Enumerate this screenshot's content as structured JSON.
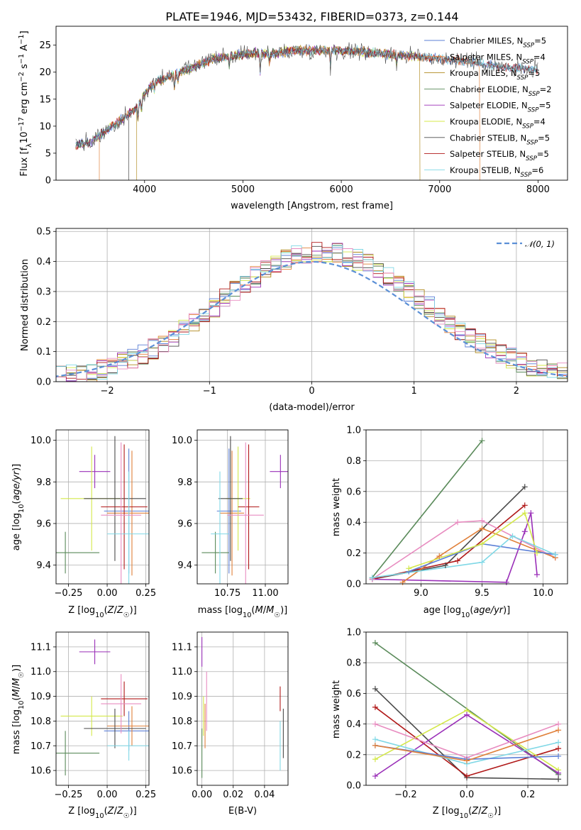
{
  "page": {
    "title": "PLATE=1946, MJD=53432, FIBERID=0373, z=0.144"
  },
  "colors": {
    "Chabrier MILES": "#5b7fd6",
    "Salpeter MILES": "#e0803a",
    "Kroupa MILES": "#b08a1e",
    "Chabrier ELODIE": "#5a8a5a",
    "Salpeter ELODIE": "#9a2fb8",
    "Kroupa ELODIE": "#d4e84a",
    "Chabrier STELIB": "#4a4a4a",
    "Salpeter STELIB": "#b01818",
    "Kroupa STELIB": "#80d8e6",
    "pink": "#e88cc0",
    "normal": "#5b8fd6",
    "grid": "#b0b0b0"
  },
  "chart_data": [
    {
      "id": "spectrum",
      "type": "line",
      "title": "PLATE=1946, MJD=53432, FIBERID=0373, z=0.144",
      "xlabel": "wavelength [Angstrom, rest frame]",
      "ylabel": "Flux [fλ10⁻¹⁷ erg cm⁻² s⁻¹ A⁻¹]",
      "xlim": [
        3100,
        8300
      ],
      "ylim": [
        0,
        28.5
      ],
      "xticks": [
        4000,
        5000,
        6000,
        7000,
        8000
      ],
      "yticks": [
        0,
        5,
        10,
        15,
        20,
        25
      ],
      "legend_position": "top-right",
      "continuum": {
        "x": [
          3300,
          3450,
          3600,
          3750,
          3900,
          4000,
          4100,
          4300,
          4500,
          4700,
          4900,
          5100,
          5300,
          5500,
          5800,
          6100,
          6400,
          6700,
          7000,
          7300,
          7600,
          7900,
          8000
        ],
        "y": [
          6.5,
          7.0,
          9.0,
          11.0,
          13.0,
          16.0,
          18.0,
          19.5,
          21.0,
          22.5,
          23.0,
          23.5,
          23.5,
          24.0,
          24.0,
          24.0,
          23.5,
          23.0,
          22.5,
          22.0,
          21.0,
          20.5,
          20.5
        ]
      },
      "series": [
        {
          "name": "Chabrier MILES",
          "nssp": "5"
        },
        {
          "name": "Salpeter MILES",
          "nssp": "4"
        },
        {
          "name": "Kroupa MILES",
          "nssp": "5"
        },
        {
          "name": "Chabrier ELODIE",
          "nssp": "2"
        },
        {
          "name": "Salpeter ELODIE",
          "nssp": "5"
        },
        {
          "name": "Kroupa ELODIE",
          "nssp": "4"
        },
        {
          "name": "Chabrier STELIB",
          "nssp": "5"
        },
        {
          "name": "Salpeter STELIB",
          "nssp": "5"
        },
        {
          "name": "Kroupa STELIB",
          "nssp": "6"
        }
      ],
      "model_ranges": [
        {
          "name": "Salpeter MILES",
          "xmin": 3540,
          "xmax": 7410
        },
        {
          "name": "Kroupa MILES",
          "xmin": 3920,
          "xmax": 6800
        }
      ]
    },
    {
      "id": "residuals",
      "type": "histogram",
      "xlabel": "(data-model)/error",
      "ylabel": "Normed distribution",
      "xlim": [
        -2.5,
        2.5
      ],
      "ylim": [
        0,
        0.51
      ],
      "xticks": [
        -2,
        -1,
        0,
        1,
        2
      ],
      "yticks": [
        0.0,
        0.1,
        0.2,
        0.3,
        0.4,
        0.5
      ],
      "bin_width": 0.1,
      "legend": "𝒩(0, 1)",
      "legend_position": "top-right"
    },
    {
      "id": "age_vs_Z",
      "type": "errorbar",
      "xlabel": "Z [log10(Z/Z☉)]",
      "ylabel": "age  [log10(age/yr)]",
      "xlim": [
        -0.33,
        0.27
      ],
      "ylim": [
        9.31,
        10.05
      ],
      "xticks": [
        -0.25,
        0.0,
        0.25
      ],
      "yticks": [
        9.4,
        9.6,
        9.8,
        10.0
      ],
      "points": [
        {
          "name": "Chabrier MILES",
          "x": 0.14,
          "xerr": 0.16,
          "y": 9.66,
          "yerr": 0.3
        },
        {
          "name": "Salpeter MILES",
          "x": 0.16,
          "xerr": 0.16,
          "y": 9.65,
          "yerr": 0.3
        },
        {
          "name": "Chabrier ELODIE",
          "x": -0.27,
          "xerr": 0.22,
          "y": 9.46,
          "yerr": 0.1
        },
        {
          "name": "Salpeter ELODIE",
          "x": -0.08,
          "xerr": 0.1,
          "y": 9.85,
          "yerr": 0.08
        },
        {
          "name": "Kroupa ELODIE",
          "x": -0.1,
          "xerr": 0.2,
          "y": 9.72,
          "yerr": 0.25
        },
        {
          "name": "Chabrier STELIB",
          "x": 0.05,
          "xerr": 0.2,
          "y": 9.72,
          "yerr": 0.3
        },
        {
          "name": "Salpeter STELIB",
          "x": 0.11,
          "xerr": 0.15,
          "y": 9.68,
          "yerr": 0.3
        },
        {
          "name": "Kroupa STELIB",
          "x": 0.14,
          "xerr": 0.14,
          "y": 9.55,
          "yerr": 0.3
        },
        {
          "name": "pink",
          "x": 0.09,
          "xerr": 0.13,
          "y": 9.64,
          "yerr": 0.35
        }
      ]
    },
    {
      "id": "age_vs_mass",
      "type": "errorbar",
      "xlabel": "mass [log10(M/M☉)]",
      "xlim": [
        10.55,
        11.15
      ],
      "ylim": [
        9.31,
        10.05
      ],
      "xticks": [
        10.75,
        11.0
      ],
      "yticks": [
        9.4,
        9.6,
        9.8,
        10.0
      ],
      "points": [
        {
          "name": "Chabrier MILES",
          "x": 10.76,
          "xerr": 0.08,
          "y": 9.66,
          "yerr": 0.3
        },
        {
          "name": "Salpeter MILES",
          "x": 10.78,
          "xerr": 0.08,
          "y": 9.65,
          "yerr": 0.3
        },
        {
          "name": "Chabrier ELODIE",
          "x": 10.67,
          "xerr": 0.09,
          "y": 9.46,
          "yerr": 0.1
        },
        {
          "name": "Salpeter ELODIE",
          "x": 11.1,
          "xerr": 0.07,
          "y": 9.85,
          "yerr": 0.08
        },
        {
          "name": "Kroupa ELODIE",
          "x": 10.82,
          "xerr": 0.08,
          "y": 9.72,
          "yerr": 0.25
        },
        {
          "name": "Chabrier STELIB",
          "x": 10.77,
          "xerr": 0.08,
          "y": 9.72,
          "yerr": 0.3
        },
        {
          "name": "Salpeter STELIB",
          "x": 10.89,
          "xerr": 0.07,
          "y": 9.68,
          "yerr": 0.3
        },
        {
          "name": "Kroupa STELIB",
          "x": 10.7,
          "xerr": 0.06,
          "y": 9.55,
          "yerr": 0.3
        },
        {
          "name": "pink",
          "x": 10.87,
          "xerr": 0.12,
          "y": 9.64,
          "yerr": 0.35
        }
      ]
    },
    {
      "id": "weight_vs_age",
      "type": "line",
      "xlabel": "age  [log10(age/yr)]",
      "ylabel": "mass weight",
      "xlim": [
        8.55,
        10.2
      ],
      "ylim": [
        0,
        1.0
      ],
      "xticks": [
        9.0,
        9.5,
        10.0
      ],
      "yticks": [
        0.0,
        0.2,
        0.4,
        0.6,
        0.8,
        1.0
      ],
      "series": [
        {
          "name": "Chabrier ELODIE",
          "x": [
            8.6,
            9.5
          ],
          "y": [
            0.04,
            0.93
          ]
        },
        {
          "name": "Chabrier STELIB",
          "x": [
            8.6,
            9.2,
            9.85
          ],
          "y": [
            0.03,
            0.12,
            0.63
          ]
        },
        {
          "name": "Salpeter STELIB",
          "x": [
            8.6,
            9.3,
            9.85
          ],
          "y": [
            0.03,
            0.15,
            0.51
          ]
        },
        {
          "name": "Salpeter ELODIE",
          "x": [
            8.6,
            9.7,
            9.85,
            9.9,
            9.95
          ],
          "y": [
            0.03,
            0.01,
            0.34,
            0.46,
            0.06
          ]
        },
        {
          "name": "pink",
          "x": [
            8.6,
            9.3,
            9.5,
            10.1
          ],
          "y": [
            0.03,
            0.4,
            0.41,
            0.17
          ]
        },
        {
          "name": "Salpeter MILES",
          "x": [
            8.85,
            9.15,
            9.5,
            10.1
          ],
          "y": [
            0.01,
            0.18,
            0.36,
            0.17
          ]
        },
        {
          "name": "Chabrier MILES",
          "x": [
            8.9,
            9.5,
            10.1
          ],
          "y": [
            0.08,
            0.26,
            0.19
          ]
        },
        {
          "name": "Kroupa ELODIE",
          "x": [
            8.9,
            9.5,
            9.85,
            9.95
          ],
          "y": [
            0.1,
            0.26,
            0.46,
            0.2
          ]
        },
        {
          "name": "Kroupa STELIB",
          "x": [
            8.6,
            9.5,
            9.75,
            10.1
          ],
          "y": [
            0.04,
            0.14,
            0.31,
            0.19
          ]
        }
      ]
    },
    {
      "id": "mass_vs_Z",
      "type": "errorbar",
      "xlabel": "Z [log10(Z/Z☉)]",
      "ylabel": "mass [log10(M/M☉)]",
      "xlim": [
        -0.33,
        0.27
      ],
      "ylim": [
        10.54,
        11.16
      ],
      "xticks": [
        -0.25,
        0.0,
        0.25
      ],
      "yticks": [
        10.6,
        10.7,
        10.8,
        10.9,
        11.0,
        11.1
      ],
      "points": [
        {
          "name": "Chabrier MILES",
          "x": 0.14,
          "xerr": 0.16,
          "y": 10.76,
          "yerr": 0.08
        },
        {
          "name": "Salpeter MILES",
          "x": 0.16,
          "xerr": 0.16,
          "y": 10.78,
          "yerr": 0.08
        },
        {
          "name": "Chabrier ELODIE",
          "x": -0.27,
          "xerr": 0.22,
          "y": 10.67,
          "yerr": 0.09
        },
        {
          "name": "Salpeter ELODIE",
          "x": -0.08,
          "xerr": 0.1,
          "y": 11.08,
          "yerr": 0.05
        },
        {
          "name": "Kroupa ELODIE",
          "x": -0.1,
          "xerr": 0.2,
          "y": 10.82,
          "yerr": 0.08
        },
        {
          "name": "Chabrier STELIB",
          "x": 0.05,
          "xerr": 0.2,
          "y": 10.77,
          "yerr": 0.08
        },
        {
          "name": "Salpeter STELIB",
          "x": 0.11,
          "xerr": 0.15,
          "y": 10.89,
          "yerr": 0.07
        },
        {
          "name": "Kroupa STELIB",
          "x": 0.14,
          "xerr": 0.14,
          "y": 10.7,
          "yerr": 0.06
        },
        {
          "name": "pink",
          "x": 0.09,
          "xerr": 0.13,
          "y": 10.87,
          "yerr": 0.12
        }
      ]
    },
    {
      "id": "mass_vs_ebv",
      "type": "errorbar",
      "xlabel": "E(B-V)",
      "xlim": [
        -0.003,
        0.055
      ],
      "ylim": [
        10.54,
        11.16
      ],
      "xticks": [
        0.0,
        0.02,
        0.04
      ],
      "yticks": [
        10.6,
        10.7,
        10.8,
        10.9,
        11.0,
        11.1
      ],
      "points": [
        {
          "name": "Chabrier ELODIE",
          "x": 0.0,
          "y": 10.67,
          "yerr": 0.1
        },
        {
          "name": "Salpeter ELODIE",
          "x": 0.0,
          "y": 11.08,
          "yerr": 0.06
        },
        {
          "name": "Kroupa ELODIE",
          "x": 0.001,
          "y": 10.82,
          "yerr": 0.08
        },
        {
          "name": "Salpeter MILES",
          "x": 0.002,
          "y": 10.78,
          "yerr": 0.09
        },
        {
          "name": "pink",
          "x": 0.003,
          "y": 10.88,
          "yerr": 0.12
        },
        {
          "name": "Salpeter STELIB",
          "x": 0.05,
          "y": 10.89,
          "yerr": 0.05
        },
        {
          "name": "Kroupa STELIB",
          "x": 0.05,
          "y": 10.7,
          "yerr": 0.1
        },
        {
          "name": "Chabrier STELIB",
          "x": 0.052,
          "y": 10.75,
          "yerr": 0.1
        }
      ]
    },
    {
      "id": "weight_vs_Z",
      "type": "line",
      "xlabel": "Z [log10(Z/Z☉)]",
      "ylabel": "mass weight",
      "xlim": [
        -0.33,
        0.33
      ],
      "ylim": [
        0,
        1.0
      ],
      "xticks": [
        -0.2,
        0.0,
        0.2
      ],
      "yticks": [
        0.0,
        0.2,
        0.4,
        0.6,
        0.8,
        1.0
      ],
      "series": [
        {
          "name": "Chabrier ELODIE",
          "x": [
            -0.3,
            0.3
          ],
          "y": [
            0.93,
            0.07
          ]
        },
        {
          "name": "Chabrier STELIB",
          "x": [
            -0.3,
            0.0,
            0.3
          ],
          "y": [
            0.63,
            0.05,
            0.04
          ]
        },
        {
          "name": "Salpeter STELIB",
          "x": [
            -0.3,
            0.0,
            0.3
          ],
          "y": [
            0.51,
            0.06,
            0.24
          ]
        },
        {
          "name": "Kroupa ELODIE",
          "x": [
            -0.3,
            0.0,
            0.3
          ],
          "y": [
            0.17,
            0.49,
            0.1
          ]
        },
        {
          "name": "Salpeter ELODIE",
          "x": [
            -0.3,
            0.0,
            0.3
          ],
          "y": [
            0.06,
            0.46,
            0.08
          ]
        },
        {
          "name": "pink",
          "x": [
            -0.3,
            0.0,
            0.3
          ],
          "y": [
            0.4,
            0.18,
            0.4
          ]
        },
        {
          "name": "Kroupa STELIB",
          "x": [
            -0.3,
            0.0,
            0.3
          ],
          "y": [
            0.3,
            0.14,
            0.28
          ]
        },
        {
          "name": "Chabrier MILES",
          "x": [
            -0.3,
            0.0,
            0.3
          ],
          "y": [
            0.26,
            0.17,
            0.19
          ]
        },
        {
          "name": "Salpeter MILES",
          "x": [
            -0.3,
            0.0,
            0.3
          ],
          "y": [
            0.26,
            0.16,
            0.36
          ]
        }
      ]
    }
  ]
}
